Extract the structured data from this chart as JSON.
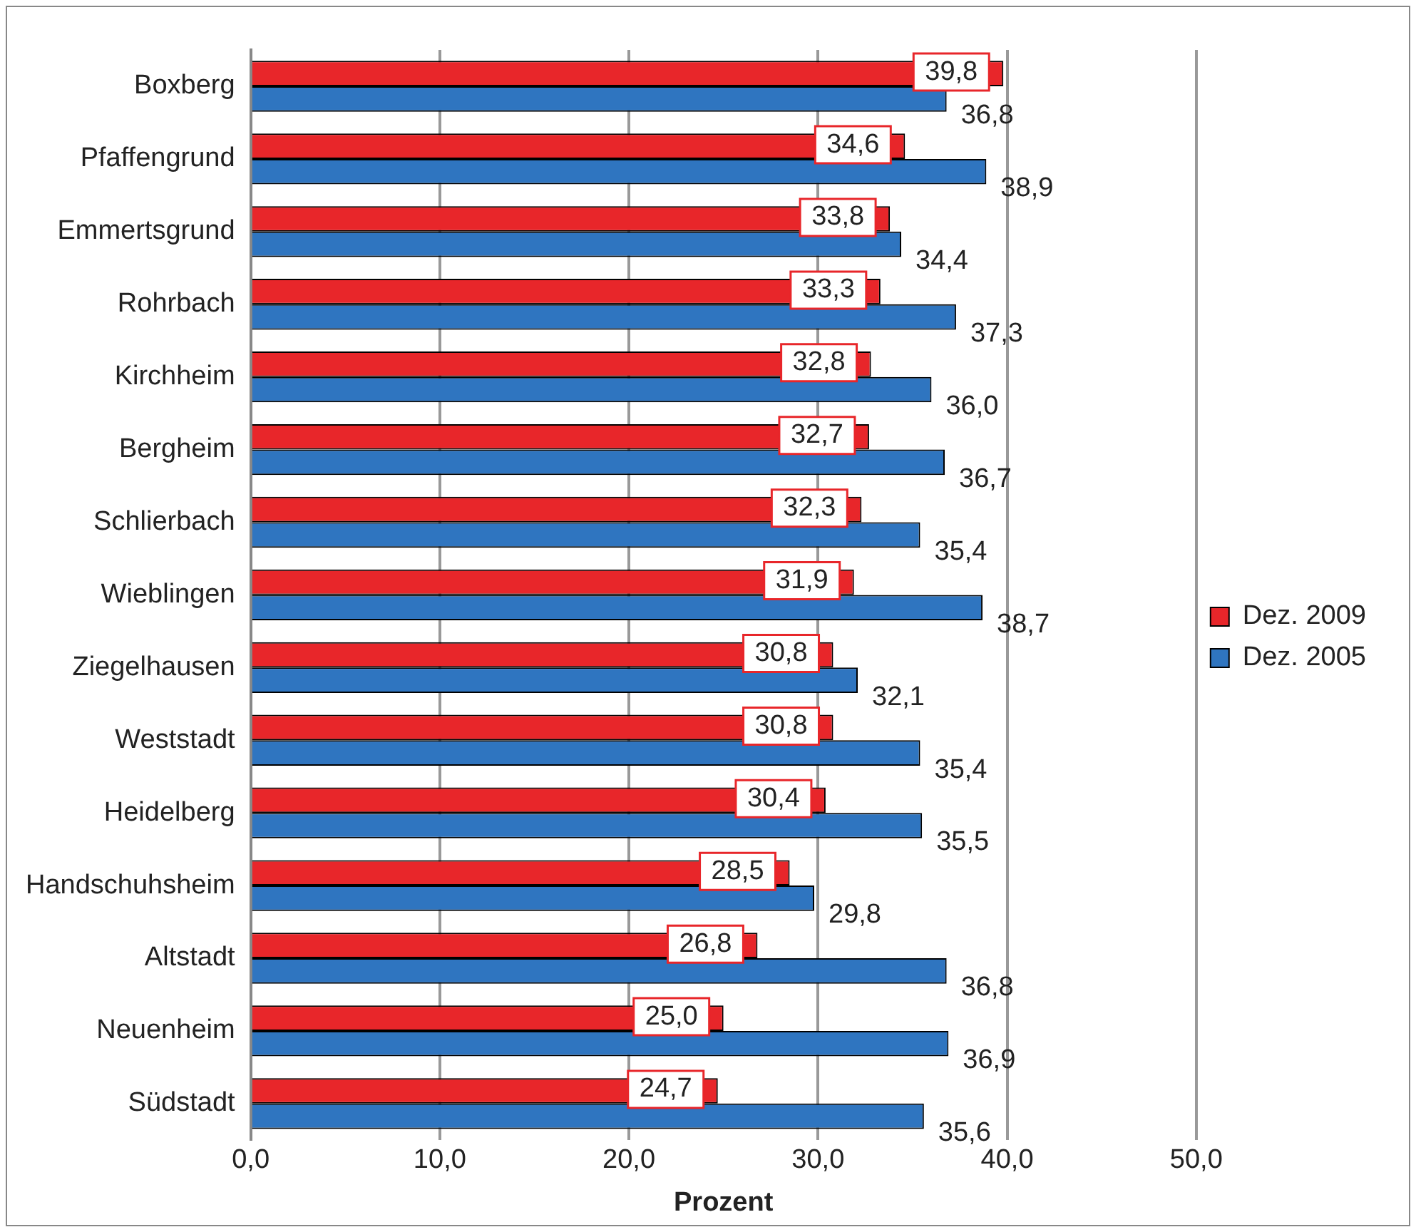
{
  "chart_data": {
    "type": "bar",
    "orientation": "horizontal",
    "xlabel": "Prozent",
    "categories": [
      "Boxberg",
      "Pfaffengrund",
      "Emmertsgrund",
      "Rohrbach",
      "Kirchheim",
      "Bergheim",
      "Schlierbach",
      "Wieblingen",
      "Ziegelhausen",
      "Weststadt",
      "Heidelberg",
      "Handschuhsheim",
      "Altstadt",
      "Neuenheim",
      "Südstadt"
    ],
    "series": [
      {
        "name": "Dez. 2009",
        "color": "#e8262a",
        "values": [
          39.8,
          34.6,
          33.8,
          33.3,
          32.8,
          32.7,
          32.3,
          31.9,
          30.8,
          30.8,
          30.4,
          28.5,
          26.8,
          25.0,
          24.7
        ],
        "value_labels": [
          "39,8",
          "34,6",
          "33,8",
          "33,3",
          "32,8",
          "32,7",
          "32,3",
          "31,9",
          "30,8",
          "30,8",
          "30,4",
          "28,5",
          "26,8",
          "25,0",
          "24,7"
        ]
      },
      {
        "name": "Dez. 2005",
        "color": "#2f75c0",
        "values": [
          36.8,
          38.9,
          34.4,
          37.3,
          36.0,
          36.7,
          35.4,
          38.7,
          32.1,
          35.4,
          35.5,
          29.8,
          36.8,
          36.9,
          35.6
        ],
        "value_labels": [
          "36,8",
          "38,9",
          "34,4",
          "37,3",
          "36,0",
          "36,7",
          "35,4",
          "38,7",
          "32,1",
          "35,4",
          "35,5",
          "29,8",
          "36,8",
          "36,9",
          "35,6"
        ]
      }
    ],
    "xlim": [
      0,
      50
    ],
    "xticks": [
      {
        "value": 0,
        "label": "0,0"
      },
      {
        "value": 10,
        "label": "10,0"
      },
      {
        "value": 20,
        "label": "20,0"
      },
      {
        "value": 30,
        "label": "30,0"
      },
      {
        "value": 40,
        "label": "40,0"
      },
      {
        "value": 50,
        "label": "50,0"
      }
    ],
    "grid": "x",
    "legend": "right"
  }
}
